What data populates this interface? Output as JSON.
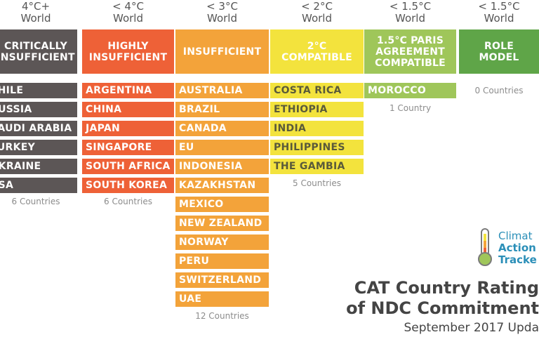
{
  "categories": [
    {
      "header_top": "4°C+",
      "header_bottom": "World",
      "label": "CRITICALLY INSUFFICIENT",
      "color": "#5c5656",
      "countries": [
        "CHILE",
        "RUSSIA",
        "SAUDI ARABIA",
        "TURKEY",
        "UKRAINE",
        "USA"
      ],
      "count": "6 Countries"
    },
    {
      "header_top": "< 4°C",
      "header_bottom": "World",
      "label": "HIGHLY INSUFFICIENT",
      "color": "#ee6137",
      "countries": [
        "ARGENTINA",
        "CHINA",
        "JAPAN",
        "SINGAPORE",
        "SOUTH AFRICA",
        "SOUTH KOREA"
      ],
      "count": "6 Countries"
    },
    {
      "header_top": "< 3°C",
      "header_bottom": "World",
      "label": "INSUFFICIENT",
      "color": "#f3a33a",
      "countries": [
        "AUSTRALIA",
        "BRAZIL",
        "CANADA",
        "EU",
        "INDONESIA",
        "KAZAKHSTAN",
        "MEXICO",
        "NEW ZEALAND",
        "NORWAY",
        "PERU",
        "SWITZERLAND",
        "UAE"
      ],
      "count": "12 Countries"
    },
    {
      "header_top": "< 2°C",
      "header_bottom": "World",
      "label": "2°C COMPATIBLE",
      "color": "#f3e33d",
      "text_color": "#5a5a3a",
      "countries": [
        "COSTA RICA",
        "ETHIOPIA",
        "INDIA",
        "PHILIPPINES",
        "THE GAMBIA"
      ],
      "count": "5 Countries"
    },
    {
      "header_top": "< 1.5°C",
      "header_bottom": "World",
      "label": "1.5°C PARIS AGREEMENT COMPATIBLE",
      "color": "#9fc65a",
      "countries": [
        "MOROCCO"
      ],
      "count": "1 Country"
    },
    {
      "header_top": "< 1.5°C",
      "header_bottom": "World",
      "label": "ROLE MODEL",
      "color": "#5fa548",
      "countries": [],
      "count": "0 Countries"
    }
  ],
  "logo": {
    "line1": "Climat",
    "line2": "Action",
    "line3": "Tracke",
    "icon": "thermometer-icon"
  },
  "title_line1": "CAT Country Rating",
  "title_line2": "of NDC Commitment",
  "subtitle": "September 2017 Upda"
}
